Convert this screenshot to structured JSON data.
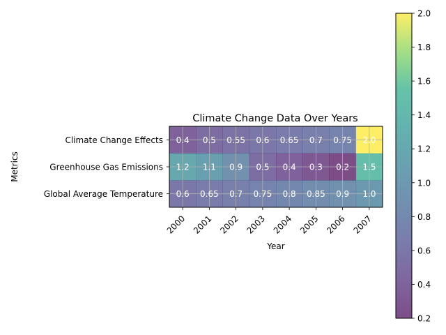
{
  "chart_data": {
    "type": "heatmap",
    "title": "Climate Change Data Over Years",
    "xlabel": "Year",
    "ylabel": "Metrics",
    "x": [
      "2000",
      "2001",
      "2002",
      "2003",
      "2004",
      "2005",
      "2006",
      "2007"
    ],
    "rows": [
      {
        "name": "Climate Change Effects",
        "values": [
          0.4,
          0.5,
          0.55,
          0.6,
          0.65,
          0.7,
          0.75,
          2.0
        ]
      },
      {
        "name": "Greenhouse Gas Emissions",
        "values": [
          1.2,
          1.1,
          0.9,
          0.5,
          0.4,
          0.3,
          0.2,
          1.5
        ]
      },
      {
        "name": "Global Average Temperature",
        "values": [
          0.6,
          0.65,
          0.7,
          0.75,
          0.8,
          0.85,
          0.9,
          1.0
        ]
      }
    ],
    "cell_labels": [
      "0.4",
      "0.5",
      "0.55",
      "0.6",
      "0.65",
      "0.7",
      "0.75",
      "2.0",
      "1.2",
      "1.1",
      "0.9",
      "0.5",
      "0.4",
      "0.3",
      "0.2",
      "1.5",
      "0.6",
      "0.65",
      "0.7",
      "0.75",
      "0.8",
      "0.85",
      "0.9",
      "1.0"
    ],
    "colorbar": {
      "range": [
        0.2,
        2.0
      ],
      "ticks": [
        "0.2",
        "0.4",
        "0.6",
        "0.8",
        "1.0",
        "1.2",
        "1.4",
        "1.6",
        "1.8",
        "2.0"
      ]
    },
    "colormap": "viridis",
    "alpha": 0.7,
    "grid": true
  }
}
